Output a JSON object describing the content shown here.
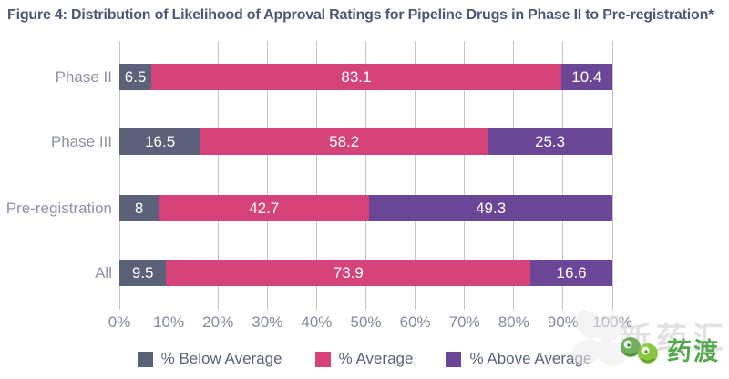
{
  "figure_title": "Figure 4: Distribution of Likelihood of Approval Ratings for Pipeline Drugs in Phase II to Pre-registration*",
  "chart_data": {
    "type": "bar",
    "orientation": "horizontal-stacked",
    "title": "Figure 4: Distribution of Likelihood of Approval Ratings for Pipeline Drugs in Phase II to Pre-registration*",
    "categories": [
      "Phase II",
      "Phase III",
      "Pre-registration",
      "All"
    ],
    "series": [
      {
        "name": "% Below Average",
        "color": "#5a6178",
        "values": [
          6.5,
          16.5,
          8,
          9.5
        ]
      },
      {
        "name": "% Average",
        "color": "#d5437a",
        "values": [
          83.1,
          58.2,
          42.7,
          73.9
        ]
      },
      {
        "name": "% Above Average",
        "color": "#6b4596",
        "values": [
          10.4,
          25.3,
          49.3,
          16.6
        ]
      }
    ],
    "x_ticks": [
      "0%",
      "10%",
      "20%",
      "30%",
      "40%",
      "50%",
      "60%",
      "70%",
      "80%",
      "90%",
      "100%"
    ],
    "xlim": [
      0,
      100
    ],
    "grid": "vertical",
    "gridline_color": "#c6c6c6",
    "legend_position": "bottom",
    "value_labels": "inside-white"
  },
  "watermark": {
    "faint_text": "新药汇",
    "logo_text": "药渡"
  }
}
